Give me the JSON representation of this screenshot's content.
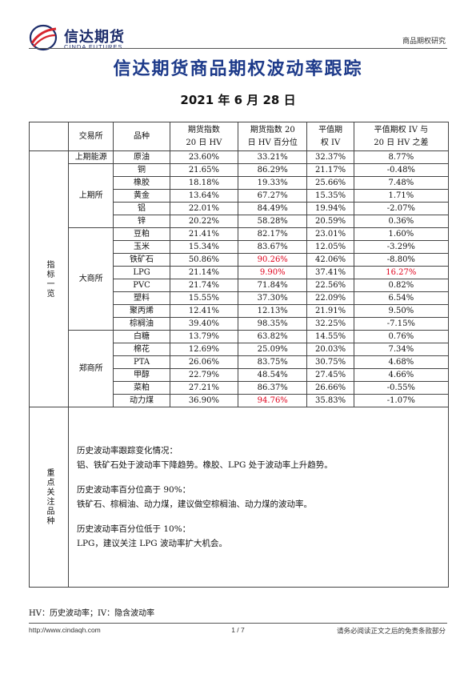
{
  "header": {
    "logo_cn": "信达期货",
    "logo_en": "CINDA FUTURES",
    "section": "商品期权研究"
  },
  "title": "信达期货商品期权波动率跟踪",
  "date": "2021 年 6 月 28 日",
  "table": {
    "headers": [
      "交易所",
      "品种",
      "期货指数\n20 日 HV",
      "期货指数 20\n日 HV 百分位",
      "平值期\n权 IV",
      "平值期权 IV 与\n20 日 HV 之差"
    ],
    "side_label_1": "指标一览",
    "side_label_2": "重点关注品种",
    "groups": [
      {
        "exchange": "上期能源",
        "rows": [
          {
            "name": "原油",
            "hv": "23.60%",
            "pct": "33.21%",
            "iv": "32.37%",
            "diff": "8.77%"
          }
        ]
      },
      {
        "exchange": "上期所",
        "rows": [
          {
            "name": "铜",
            "hv": "21.65%",
            "pct": "86.29%",
            "iv": "21.17%",
            "diff": "-0.48%"
          },
          {
            "name": "橡胶",
            "hv": "18.18%",
            "pct": "19.33%",
            "iv": "25.66%",
            "diff": "7.48%"
          },
          {
            "name": "黄金",
            "hv": "13.64%",
            "pct": "67.27%",
            "iv": "15.35%",
            "diff": "1.71%"
          },
          {
            "name": "铝",
            "hv": "22.01%",
            "pct": "84.49%",
            "iv": "19.94%",
            "diff": "-2.07%"
          },
          {
            "name": "锌",
            "hv": "20.22%",
            "pct": "58.28%",
            "iv": "20.59%",
            "diff": "0.36%"
          }
        ]
      },
      {
        "exchange": "大商所",
        "rows": [
          {
            "name": "豆粕",
            "hv": "21.41%",
            "pct": "82.17%",
            "iv": "23.01%",
            "diff": "1.60%"
          },
          {
            "name": "玉米",
            "hv": "15.34%",
            "pct": "83.67%",
            "iv": "12.05%",
            "diff": "-3.29%"
          },
          {
            "name": "铁矿石",
            "hv": "50.86%",
            "pct": "90.26%",
            "iv": "42.06%",
            "diff": "-8.80%",
            "pct_red": true
          },
          {
            "name": "LPG",
            "hv": "21.14%",
            "pct": "9.90%",
            "iv": "37.41%",
            "diff": "16.27%",
            "pct_red": true,
            "diff_red": true
          },
          {
            "name": "PVC",
            "hv": "21.74%",
            "pct": "71.84%",
            "iv": "22.56%",
            "diff": "0.82%"
          },
          {
            "name": "塑料",
            "hv": "15.55%",
            "pct": "37.30%",
            "iv": "22.09%",
            "diff": "6.54%"
          },
          {
            "name": "聚丙烯",
            "hv": "12.41%",
            "pct": "12.13%",
            "iv": "21.91%",
            "diff": "9.50%"
          },
          {
            "name": "棕榈油",
            "hv": "39.40%",
            "pct": "98.35%",
            "iv": "32.25%",
            "diff": "-7.15%"
          }
        ]
      },
      {
        "exchange": "郑商所",
        "rows": [
          {
            "name": "白糖",
            "hv": "13.79%",
            "pct": "63.82%",
            "iv": "14.55%",
            "diff": "0.76%"
          },
          {
            "name": "棉花",
            "hv": "12.69%",
            "pct": "25.09%",
            "iv": "20.03%",
            "diff": "7.34%"
          },
          {
            "name": "PTA",
            "hv": "26.06%",
            "pct": "83.75%",
            "iv": "30.75%",
            "diff": "4.68%"
          },
          {
            "name": "甲醇",
            "hv": "22.79%",
            "pct": "48.54%",
            "iv": "27.45%",
            "diff": "4.66%"
          },
          {
            "name": "菜粕",
            "hv": "27.21%",
            "pct": "86.37%",
            "iv": "26.66%",
            "diff": "-0.55%"
          },
          {
            "name": "动力煤",
            "hv": "36.90%",
            "pct": "94.76%",
            "iv": "35.83%",
            "diff": "-1.07%",
            "pct_red": true
          }
        ]
      }
    ]
  },
  "notes": [
    {
      "heading": "历史波动率跟踪变化情况：",
      "body": "铝、铁矿石处于波动率下降趋势。橡胶、LPG 处于波动率上升趋势。"
    },
    {
      "heading": "历史波动率百分位高于 90%：",
      "body": "铁矿石、棕榈油、动力煤，建议做空棕榈油、动力煤的波动率。"
    },
    {
      "heading": "历史波动率百分位低于 10%：",
      "body": "LPG，建议关注 LPG 波动率扩大机会。"
    }
  ],
  "footnote": "HV：历史波动率；IV：隐含波动率",
  "footer": {
    "url": "http://www.cindaqh.com",
    "page": "1 / 7",
    "disclaimer": "请务必阅读正文之后的免责条款部分"
  },
  "colors": {
    "title_blue": "#1d3a8a",
    "logo_navy": "#1d2d6b",
    "logo_red": "#d7262e",
    "highlight_red": "#e0001b"
  }
}
